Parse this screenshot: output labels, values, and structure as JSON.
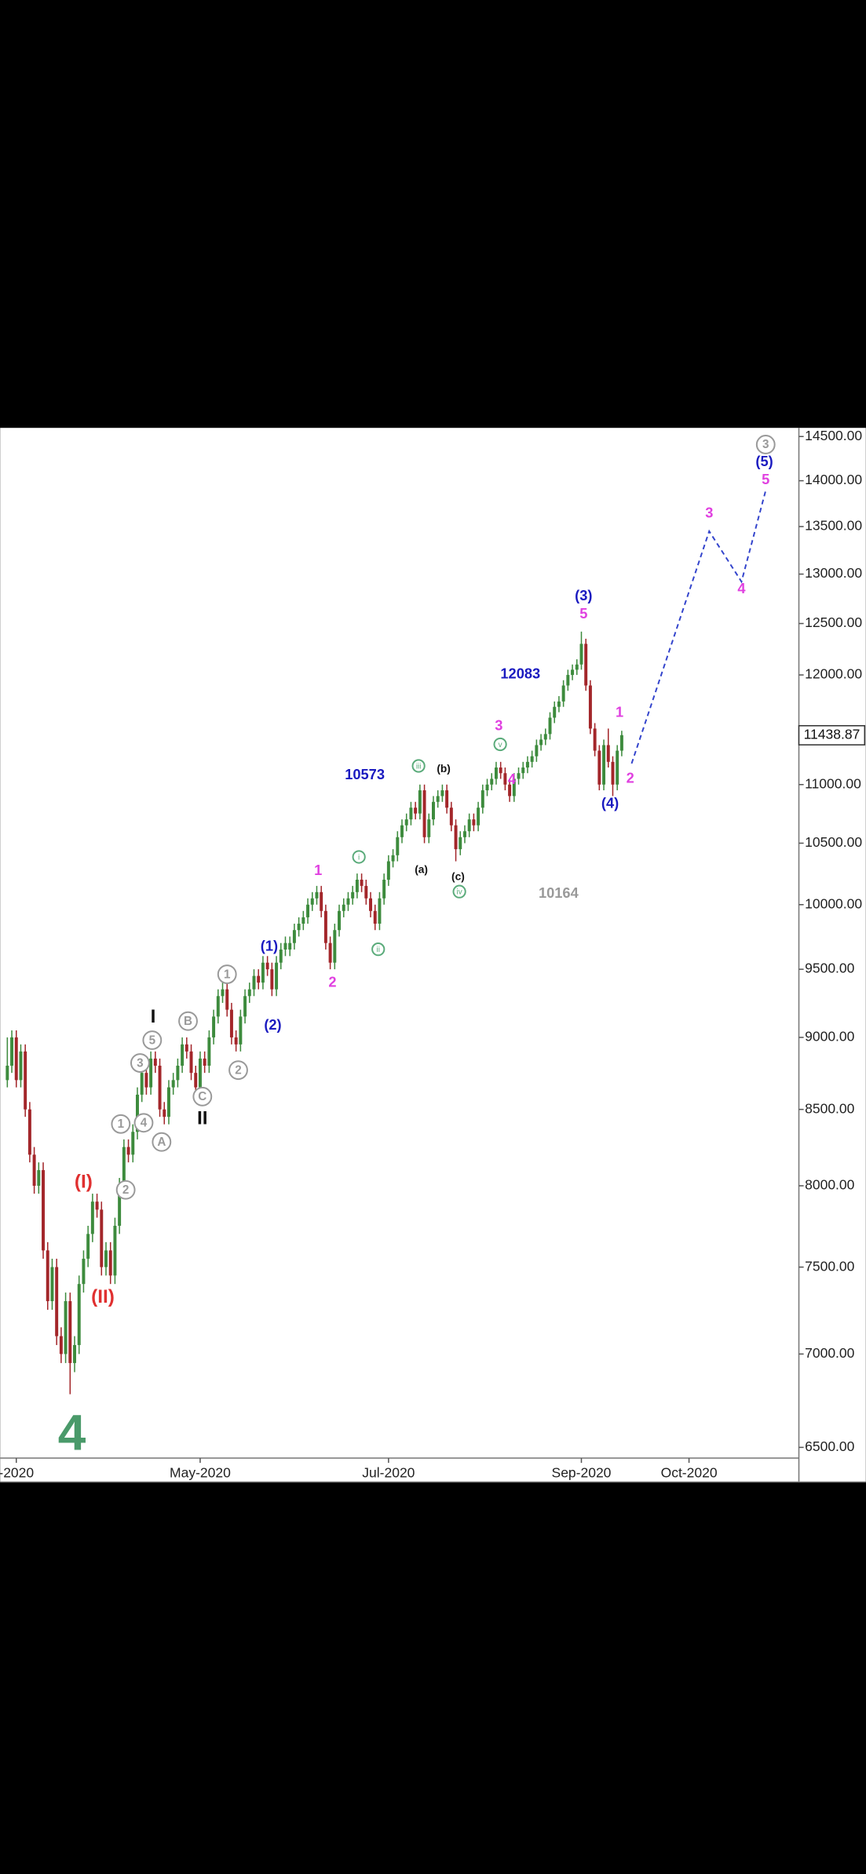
{
  "chart_data": {
    "type": "candlestick",
    "log_scale": true,
    "up_color": "#3d8b3d",
    "down_color": "#a3262a",
    "ohlc": [
      [
        8700,
        9000,
        8650,
        8800
      ],
      [
        8800,
        9050,
        8750,
        9000
      ],
      [
        9000,
        9050,
        8650,
        8700
      ],
      [
        8700,
        8950,
        8650,
        8900
      ],
      [
        8900,
        8950,
        8450,
        8500
      ],
      [
        8500,
        8550,
        8150,
        8200
      ],
      [
        8200,
        8250,
        7950,
        8000
      ],
      [
        8000,
        8150,
        7950,
        8100
      ],
      [
        8100,
        8150,
        7550,
        7600
      ],
      [
        7600,
        7650,
        7250,
        7300
      ],
      [
        7300,
        7550,
        7250,
        7500
      ],
      [
        7500,
        7550,
        7050,
        7100
      ],
      [
        7100,
        7150,
        6950,
        7000
      ],
      [
        7000,
        7350,
        6950,
        7300
      ],
      [
        7300,
        7350,
        6780,
        6950
      ],
      [
        6950,
        7100,
        6900,
        7050
      ],
      [
        7050,
        7450,
        7000,
        7400
      ],
      [
        7400,
        7600,
        7350,
        7550
      ],
      [
        7550,
        7750,
        7500,
        7700
      ],
      [
        7700,
        7950,
        7650,
        7900
      ],
      [
        7900,
        7950,
        7800,
        7850
      ],
      [
        7850,
        7900,
        7450,
        7500
      ],
      [
        7500,
        7650,
        7450,
        7600
      ],
      [
        7600,
        7650,
        7400,
        7450
      ],
      [
        7450,
        7800,
        7400,
        7750
      ],
      [
        7750,
        8050,
        7700,
        8000
      ],
      [
        8000,
        8300,
        7950,
        8250
      ],
      [
        8250,
        8300,
        8150,
        8200
      ],
      [
        8200,
        8400,
        8150,
        8350
      ],
      [
        8350,
        8650,
        8300,
        8600
      ],
      [
        8600,
        8800,
        8550,
        8750
      ],
      [
        8750,
        8800,
        8600,
        8650
      ],
      [
        8650,
        8900,
        8600,
        8850
      ],
      [
        8850,
        8900,
        8750,
        8800
      ],
      [
        8800,
        8850,
        8450,
        8500
      ],
      [
        8500,
        8550,
        8400,
        8450
      ],
      [
        8450,
        8700,
        8400,
        8650
      ],
      [
        8650,
        8750,
        8600,
        8700
      ],
      [
        8700,
        8850,
        8650,
        8800
      ],
      [
        8800,
        9000,
        8750,
        8950
      ],
      [
        8950,
        9000,
        8850,
        8900
      ],
      [
        8900,
        8950,
        8700,
        8750
      ],
      [
        8750,
        8800,
        8600,
        8650
      ],
      [
        8650,
        8900,
        8600,
        8850
      ],
      [
        8850,
        8900,
        8750,
        8800
      ],
      [
        8800,
        9050,
        8750,
        9000
      ],
      [
        9000,
        9200,
        8950,
        9150
      ],
      [
        9150,
        9350,
        9100,
        9300
      ],
      [
        9300,
        9400,
        9250,
        9350
      ],
      [
        9350,
        9400,
        9150,
        9200
      ],
      [
        9200,
        9250,
        8950,
        9000
      ],
      [
        9000,
        9050,
        8900,
        8950
      ],
      [
        8950,
        9200,
        8900,
        9150
      ],
      [
        9150,
        9350,
        9100,
        9300
      ],
      [
        9300,
        9400,
        9250,
        9350
      ],
      [
        9350,
        9500,
        9300,
        9450
      ],
      [
        9450,
        9500,
        9350,
        9400
      ],
      [
        9400,
        9600,
        9350,
        9550
      ],
      [
        9550,
        9600,
        9450,
        9500
      ],
      [
        9500,
        9550,
        9300,
        9350
      ],
      [
        9350,
        9600,
        9300,
        9550
      ],
      [
        9550,
        9700,
        9500,
        9650
      ],
      [
        9650,
        9750,
        9600,
        9700
      ],
      [
        9650,
        9750,
        9600,
        9700
      ],
      [
        9700,
        9850,
        9650,
        9800
      ],
      [
        9800,
        9900,
        9750,
        9850
      ],
      [
        9850,
        9950,
        9800,
        9900
      ],
      [
        9900,
        10050,
        9850,
        10000
      ],
      [
        10000,
        10100,
        9950,
        10050
      ],
      [
        10050,
        10150,
        10000,
        10100
      ],
      [
        10100,
        10150,
        9900,
        9950
      ],
      [
        9950,
        10000,
        9650,
        9700
      ],
      [
        9700,
        9750,
        9500,
        9550
      ],
      [
        9550,
        9850,
        9500,
        9800
      ],
      [
        9800,
        10000,
        9750,
        9950
      ],
      [
        9950,
        10050,
        9900,
        10000
      ],
      [
        10000,
        10100,
        9950,
        10050
      ],
      [
        10050,
        10150,
        10000,
        10100
      ],
      [
        10100,
        10250,
        10050,
        10200
      ],
      [
        10200,
        10250,
        10100,
        10150
      ],
      [
        10150,
        10200,
        10000,
        10050
      ],
      [
        10050,
        10100,
        9900,
        9950
      ],
      [
        9950,
        10000,
        9800,
        9850
      ],
      [
        9850,
        10100,
        9800,
        10050
      ],
      [
        10050,
        10250,
        10000,
        10200
      ],
      [
        10200,
        10400,
        10150,
        10350
      ],
      [
        10350,
        10450,
        10300,
        10400
      ],
      [
        10400,
        10600,
        10350,
        10550
      ],
      [
        10550,
        10700,
        10500,
        10650
      ],
      [
        10650,
        10750,
        10600,
        10700
      ],
      [
        10700,
        10850,
        10650,
        10800
      ],
      [
        10800,
        10850,
        10700,
        10750
      ],
      [
        10750,
        11000,
        10700,
        10950
      ],
      [
        10950,
        11000,
        10500,
        10550
      ],
      [
        10550,
        10750,
        10500,
        10700
      ],
      [
        10700,
        10900,
        10650,
        10850
      ],
      [
        10850,
        10950,
        10800,
        10900
      ],
      [
        10900,
        11000,
        10850,
        10950
      ],
      [
        10950,
        11000,
        10750,
        10800
      ],
      [
        10800,
        10850,
        10600,
        10650
      ],
      [
        10650,
        10700,
        10350,
        10450
      ],
      [
        10450,
        10600,
        10400,
        10550
      ],
      [
        10550,
        10650,
        10500,
        10600
      ],
      [
        10600,
        10750,
        10550,
        10700
      ],
      [
        10700,
        10750,
        10600,
        10650
      ],
      [
        10650,
        10850,
        10600,
        10800
      ],
      [
        10800,
        11000,
        10750,
        10950
      ],
      [
        10950,
        11050,
        10900,
        11000
      ],
      [
        11000,
        11100,
        10950,
        11050
      ],
      [
        11050,
        11200,
        11000,
        11150
      ],
      [
        11150,
        11200,
        11050,
        11100
      ],
      [
        11100,
        11150,
        10950,
        11000
      ],
      [
        11000,
        11050,
        10850,
        10900
      ],
      [
        10900,
        11100,
        10850,
        11050
      ],
      [
        11050,
        11150,
        11000,
        11100
      ],
      [
        11100,
        11200,
        11050,
        11150
      ],
      [
        11150,
        11250,
        11100,
        11200
      ],
      [
        11200,
        11300,
        11150,
        11250
      ],
      [
        11250,
        11400,
        11200,
        11350
      ],
      [
        11350,
        11450,
        11300,
        11400
      ],
      [
        11400,
        11500,
        11350,
        11450
      ],
      [
        11450,
        11650,
        11400,
        11600
      ],
      [
        11600,
        11750,
        11550,
        11700
      ],
      [
        11700,
        11800,
        11650,
        11750
      ],
      [
        11750,
        11950,
        11700,
        11900
      ],
      [
        11900,
        12050,
        11850,
        12000
      ],
      [
        12000,
        12100,
        11950,
        12050
      ],
      [
        12050,
        12150,
        12000,
        12100
      ],
      [
        12100,
        12420,
        12050,
        12300
      ],
      [
        12300,
        12350,
        11850,
        11900
      ],
      [
        11900,
        11950,
        11450,
        11500
      ],
      [
        11500,
        11550,
        11250,
        11300
      ],
      [
        11300,
        11350,
        10950,
        11000
      ],
      [
        11000,
        11400,
        10950,
        11350
      ],
      [
        11350,
        11500,
        11150,
        11200
      ],
      [
        11200,
        11250,
        10900,
        11000
      ],
      [
        11000,
        11350,
        10950,
        11300
      ],
      [
        11300,
        11480,
        11250,
        11440
      ]
    ],
    "xlim": [
      -1.6,
      176.5
    ],
    "xticks": [
      {
        "value": 2,
        "label": "-2020"
      },
      {
        "value": 43,
        "label": "May-2020"
      },
      {
        "value": 85,
        "label": "Jul-2020"
      },
      {
        "value": 128,
        "label": "Sep-2020"
      },
      {
        "value": 152,
        "label": "Oct-2020"
      }
    ],
    "ylim": [
      6445,
      14600
    ],
    "yticks": [
      {
        "value": 6500,
        "label": "6500.00"
      },
      {
        "value": 7000,
        "label": "7000.00"
      },
      {
        "value": 7500,
        "label": "7500.00"
      },
      {
        "value": 8000,
        "label": "8000.00"
      },
      {
        "value": 8500,
        "label": "8500.00"
      },
      {
        "value": 9000,
        "label": "9000.00"
      },
      {
        "value": 9500,
        "label": "9500.00"
      },
      {
        "value": 10000,
        "label": "10000.00"
      },
      {
        "value": 10500,
        "label": "10500.00"
      },
      {
        "value": 11000,
        "label": "11000.00"
      },
      {
        "value": 12000,
        "label": "12000.00"
      },
      {
        "value": 12500,
        "label": "12500.00"
      },
      {
        "value": 13000,
        "label": "13000.00"
      },
      {
        "value": 13500,
        "label": "13500.00"
      },
      {
        "value": 14000,
        "label": "14000.00"
      },
      {
        "value": 14500,
        "label": "14500.00"
      }
    ],
    "last_price": {
      "value": 11438.87,
      "label": "11438.87"
    },
    "projection": {
      "color": "#3344cc",
      "x": [
        139.2,
        156.5,
        163.7,
        169.1
      ],
      "y": [
        11185,
        13450,
        12922,
        13892
      ]
    },
    "annotations": [
      {
        "text": "4",
        "x": 14.4,
        "y": 6556,
        "color": "#4a9a6a",
        "style": "large"
      },
      {
        "text": "(I)",
        "x": 17,
        "y": 8020,
        "color": "#e03030",
        "style": "big"
      },
      {
        "text": "(II)",
        "x": 21.3,
        "y": 7320,
        "color": "#e03030",
        "style": "big"
      },
      {
        "text": "1",
        "x": 25.3,
        "y": 8402,
        "color": "#999999",
        "style": "circle"
      },
      {
        "text": "2",
        "x": 26.4,
        "y": 7974,
        "color": "#999999",
        "style": "circle"
      },
      {
        "text": "3",
        "x": 29.6,
        "y": 8819,
        "color": "#999999",
        "style": "circle"
      },
      {
        "text": "4",
        "x": 30.4,
        "y": 8410,
        "color": "#999999",
        "style": "circle"
      },
      {
        "text": "5",
        "x": 32.3,
        "y": 8980,
        "color": "#999999",
        "style": "circle"
      },
      {
        "text": "I",
        "x": 32.5,
        "y": 9144,
        "color": "#111111",
        "style": "big"
      },
      {
        "text": "A",
        "x": 34.4,
        "y": 8283,
        "color": "#999999",
        "style": "circle"
      },
      {
        "text": "B",
        "x": 40.3,
        "y": 9117,
        "color": "#999999",
        "style": "circle"
      },
      {
        "text": "C",
        "x": 43.5,
        "y": 8587,
        "color": "#999999",
        "style": "circle"
      },
      {
        "text": "II",
        "x": 43.5,
        "y": 8434,
        "color": "#111111",
        "style": "big"
      },
      {
        "text": "1",
        "x": 49,
        "y": 9462,
        "color": "#999999",
        "style": "circle"
      },
      {
        "text": "2",
        "x": 51.5,
        "y": 8769,
        "color": "#999999",
        "style": "circle"
      },
      {
        "text": "(1)",
        "x": 58.4,
        "y": 9671,
        "color": "#1a1ac0",
        "style": "plain"
      },
      {
        "text": "(2)",
        "x": 59.2,
        "y": 9083,
        "color": "#1a1ac0",
        "style": "plain"
      },
      {
        "text": "1",
        "x": 69.3,
        "y": 10268,
        "color": "#e040e0",
        "style": "plain"
      },
      {
        "text": "2",
        "x": 72.5,
        "y": 9398,
        "color": "#e040e0",
        "style": "plain"
      },
      {
        "text": "i",
        "x": 78.4,
        "y": 10386,
        "color": "#5aab7a",
        "style": "small-circle"
      },
      {
        "text": "ii",
        "x": 82.7,
        "y": 9652,
        "color": "#5aab7a",
        "style": "small-circle"
      },
      {
        "text": "10573",
        "x": 79.7,
        "y": 11080,
        "color": "#1a1ac0",
        "style": "plain"
      },
      {
        "text": "iii",
        "x": 91.7,
        "y": 11164,
        "color": "#5aab7a",
        "style": "small-circle"
      },
      {
        "text": "(b)",
        "x": 97.3,
        "y": 11132,
        "color": "#111111",
        "style": "small"
      },
      {
        "text": "(a)",
        "x": 92.3,
        "y": 10278,
        "color": "#111111",
        "style": "small"
      },
      {
        "text": "(c)",
        "x": 100.5,
        "y": 10220,
        "color": "#111111",
        "style": "small"
      },
      {
        "text": "iv",
        "x": 100.8,
        "y": 10104,
        "color": "#5aab7a",
        "style": "small-circle"
      },
      {
        "text": "3",
        "x": 109.6,
        "y": 11520,
        "color": "#e040e0",
        "style": "plain"
      },
      {
        "text": "v",
        "x": 109.9,
        "y": 11357,
        "color": "#5aab7a",
        "style": "small-circle"
      },
      {
        "text": "4",
        "x": 112.5,
        "y": 11038,
        "color": "#e040e0",
        "style": "plain"
      },
      {
        "text": "10164",
        "x": 122.9,
        "y": 10085,
        "color": "#999999",
        "style": "plain"
      },
      {
        "text": "12083",
        "x": 114.4,
        "y": 12002,
        "color": "#1a1ac0",
        "style": "plain"
      },
      {
        "text": "(3)",
        "x": 128.5,
        "y": 12770,
        "color": "#1a1ac0",
        "style": "plain"
      },
      {
        "text": "5",
        "x": 128.5,
        "y": 12588,
        "color": "#e040e0",
        "style": "plain"
      },
      {
        "text": "1",
        "x": 136.5,
        "y": 11641,
        "color": "#e040e0",
        "style": "plain"
      },
      {
        "text": "2",
        "x": 138.9,
        "y": 11048,
        "color": "#e040e0",
        "style": "plain"
      },
      {
        "text": "(4)",
        "x": 134.4,
        "y": 10832,
        "color": "#1a1ac0",
        "style": "plain"
      },
      {
        "text": "3",
        "x": 156.5,
        "y": 13636,
        "color": "#e040e0",
        "style": "plain"
      },
      {
        "text": "4",
        "x": 163.7,
        "y": 12843,
        "color": "#e040e0",
        "style": "plain"
      },
      {
        "text": "(5)",
        "x": 168.8,
        "y": 14205,
        "color": "#1a1ac0",
        "style": "plain"
      },
      {
        "text": "5",
        "x": 169.1,
        "y": 14004,
        "color": "#e040e0",
        "style": "plain"
      },
      {
        "text": "3",
        "x": 169.1,
        "y": 14408,
        "color": "#999999",
        "style": "circle"
      }
    ]
  }
}
